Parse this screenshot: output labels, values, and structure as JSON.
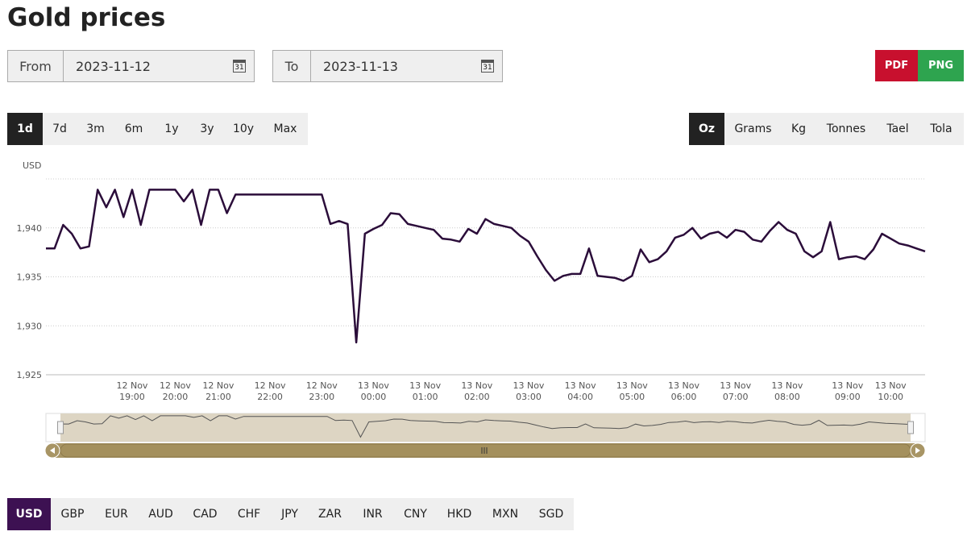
{
  "title": "Gold prices",
  "date_range": {
    "from_label": "From",
    "from_value": "2023-11-12",
    "to_label": "To",
    "to_value": "2023-11-13",
    "icon": "31"
  },
  "export": [
    "PDF",
    "PNG"
  ],
  "ranges": [
    {
      "label": "1d",
      "selected": true
    },
    {
      "label": "7d",
      "selected": false
    },
    {
      "label": "3m",
      "selected": false
    },
    {
      "label": "6m",
      "selected": false
    },
    {
      "label": "1y",
      "selected": false
    },
    {
      "label": "3y",
      "selected": false
    },
    {
      "label": "10y",
      "selected": false
    },
    {
      "label": "Max",
      "selected": false
    }
  ],
  "units": [
    {
      "label": "Oz",
      "selected": true
    },
    {
      "label": "Grams",
      "selected": false
    },
    {
      "label": "Kg",
      "selected": false
    },
    {
      "label": "Tonnes",
      "selected": false
    },
    {
      "label": "Tael",
      "selected": false
    },
    {
      "label": "Tola",
      "selected": false
    }
  ],
  "currencies": [
    {
      "label": "USD",
      "selected": true
    },
    {
      "label": "GBP",
      "selected": false
    },
    {
      "label": "EUR",
      "selected": false
    },
    {
      "label": "AUD",
      "selected": false
    },
    {
      "label": "CAD",
      "selected": false
    },
    {
      "label": "CHF",
      "selected": false
    },
    {
      "label": "JPY",
      "selected": false
    },
    {
      "label": "ZAR",
      "selected": false
    },
    {
      "label": "INR",
      "selected": false
    },
    {
      "label": "CNY",
      "selected": false
    },
    {
      "label": "HKD",
      "selected": false
    },
    {
      "label": "MXN",
      "selected": false
    },
    {
      "label": "SGD",
      "selected": false
    }
  ],
  "chart_data": {
    "type": "line",
    "y_label": "USD",
    "color": "#2b0d3a",
    "grid": true,
    "ylim": [
      1925,
      1945
    ],
    "yticks": [
      {
        "value": 1925,
        "label": "1,925"
      },
      {
        "value": 1930,
        "label": "1,930"
      },
      {
        "value": 1935,
        "label": "1,935"
      },
      {
        "value": 1940,
        "label": "1,940"
      }
    ],
    "categories": [
      null,
      null,
      null,
      null,
      null,
      null,
      null,
      null,
      null,
      null,
      [
        "12 Nov",
        "19:00"
      ],
      null,
      null,
      null,
      null,
      [
        "12 Nov",
        "20:00"
      ],
      null,
      null,
      null,
      null,
      [
        "12 Nov",
        "21:00"
      ],
      null,
      null,
      null,
      null,
      null,
      [
        "12 Nov",
        "22:00"
      ],
      null,
      null,
      null,
      null,
      null,
      [
        "12 Nov",
        "23:00"
      ],
      null,
      null,
      null,
      null,
      null,
      [
        "13 Nov",
        "00:00"
      ],
      null,
      null,
      null,
      null,
      null,
      [
        "13 Nov",
        "01:00"
      ],
      null,
      null,
      null,
      null,
      null,
      [
        "13 Nov",
        "02:00"
      ],
      null,
      null,
      null,
      null,
      null,
      [
        "13 Nov",
        "03:00"
      ],
      null,
      null,
      null,
      null,
      null,
      [
        "13 Nov",
        "04:00"
      ],
      null,
      null,
      null,
      null,
      null,
      [
        "13 Nov",
        "05:00"
      ],
      null,
      null,
      null,
      null,
      null,
      [
        "13 Nov",
        "06:00"
      ],
      null,
      null,
      null,
      null,
      null,
      [
        "13 Nov",
        "07:00"
      ],
      null,
      null,
      null,
      null,
      null,
      [
        "13 Nov",
        "08:00"
      ],
      null,
      null,
      null,
      null,
      null,
      null,
      [
        "13 Nov",
        "09:00"
      ],
      null,
      null,
      null,
      null,
      [
        "13 Nov",
        "10:00"
      ],
      null,
      null,
      null,
      null
    ],
    "values": [
      1937.9,
      1937.9,
      1940.3,
      1939.4,
      1937.9,
      1938.1,
      1943.9,
      1942.1,
      1943.9,
      1941.1,
      1943.9,
      1940.3,
      1943.9,
      1943.9,
      1943.9,
      1943.9,
      1942.7,
      1943.9,
      1940.3,
      1943.9,
      1943.9,
      1941.5,
      1943.4,
      1943.4,
      1943.4,
      1943.4,
      1943.4,
      1943.4,
      1943.4,
      1943.4,
      1943.4,
      1943.4,
      1943.4,
      1940.4,
      1940.7,
      1940.4,
      1928.3,
      1939.4,
      1939.9,
      1940.3,
      1941.5,
      1941.4,
      1940.4,
      1940.2,
      1940.0,
      1939.8,
      1938.9,
      1938.8,
      1938.6,
      1939.9,
      1939.4,
      1940.9,
      1940.4,
      1940.2,
      1940.0,
      1939.2,
      1938.6,
      1937.1,
      1935.7,
      1934.6,
      1935.1,
      1935.3,
      1935.3,
      1937.9,
      1935.1,
      1935.0,
      1934.9,
      1934.6,
      1935.1,
      1937.8,
      1936.5,
      1936.8,
      1937.6,
      1939.0,
      1939.3,
      1940.0,
      1938.9,
      1939.4,
      1939.6,
      1939.0,
      1939.8,
      1939.6,
      1938.8,
      1938.6,
      1939.7,
      1940.6,
      1939.8,
      1939.4,
      1937.6,
      1937.0,
      1937.6,
      1940.6,
      1936.8,
      1937.0,
      1937.1,
      1936.8,
      1937.8,
      1939.4,
      1938.9,
      1938.4,
      1938.2,
      1937.9,
      1937.6
    ]
  }
}
